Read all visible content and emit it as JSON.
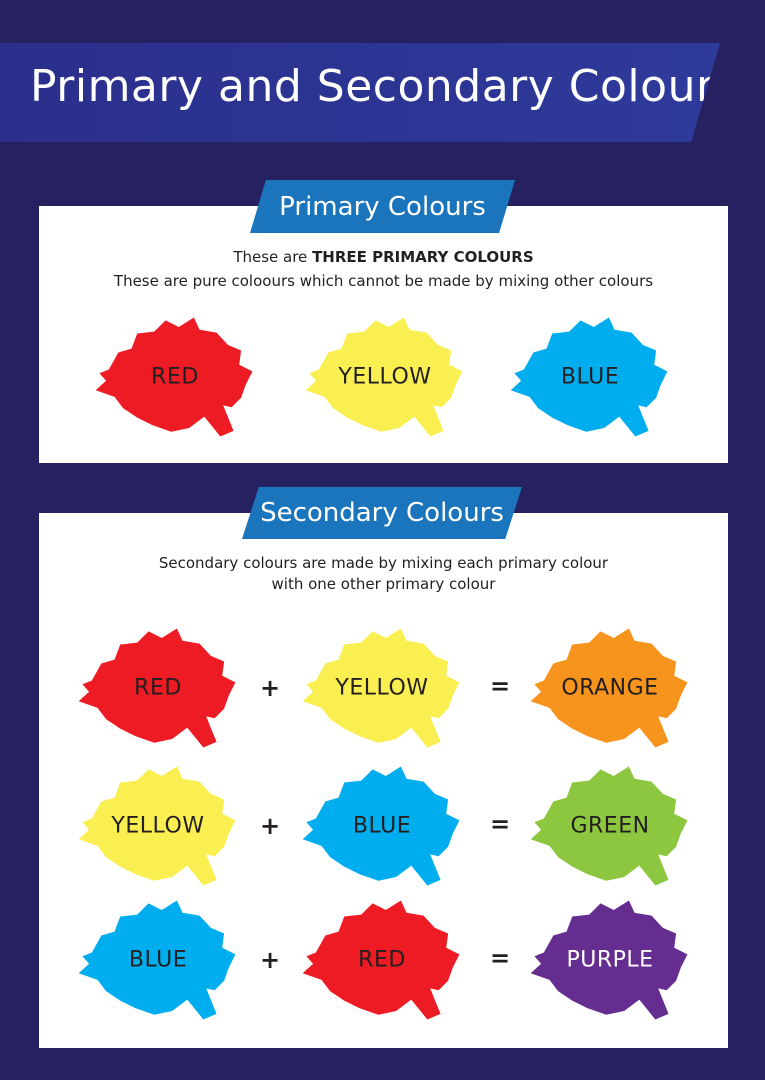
{
  "title": "Primary and Secondary Colours",
  "primary": {
    "heading": "Primary Colours",
    "line1_prefix": "These are ",
    "line1_bold": "THREE PRIMARY COLOURS",
    "line2": "These are pure coloours which cannot be made by mixing other colours",
    "colours": [
      {
        "label": "RED",
        "color": "#ed1c24"
      },
      {
        "label": "YELLOW",
        "color": "#f9ef50"
      },
      {
        "label": "BLUE",
        "color": "#00aeef"
      }
    ]
  },
  "secondary": {
    "heading": "Secondary Colours",
    "line1": "Secondary colours are made by mixing each primary colour",
    "line2": "with one other primary colour",
    "plus": "+",
    "equals": "=",
    "rows": [
      {
        "a": {
          "label": "RED",
          "color": "#ed1c24"
        },
        "b": {
          "label": "YELLOW",
          "color": "#f9ef50"
        },
        "result": {
          "label": "ORANGE",
          "color": "#f7941d"
        }
      },
      {
        "a": {
          "label": "YELLOW",
          "color": "#f9ef50"
        },
        "b": {
          "label": "BLUE",
          "color": "#00aeef"
        },
        "result": {
          "label": "GREEN",
          "color": "#8dc63f"
        }
      },
      {
        "a": {
          "label": "BLUE",
          "color": "#00aeef"
        },
        "b": {
          "label": "RED",
          "color": "#ed1c24"
        },
        "result": {
          "label": "PURPLE",
          "color": "#662d91"
        }
      }
    ]
  },
  "colors": {
    "background": "#262262",
    "banner": "#2e3192",
    "tab": "#1b75bc"
  }
}
